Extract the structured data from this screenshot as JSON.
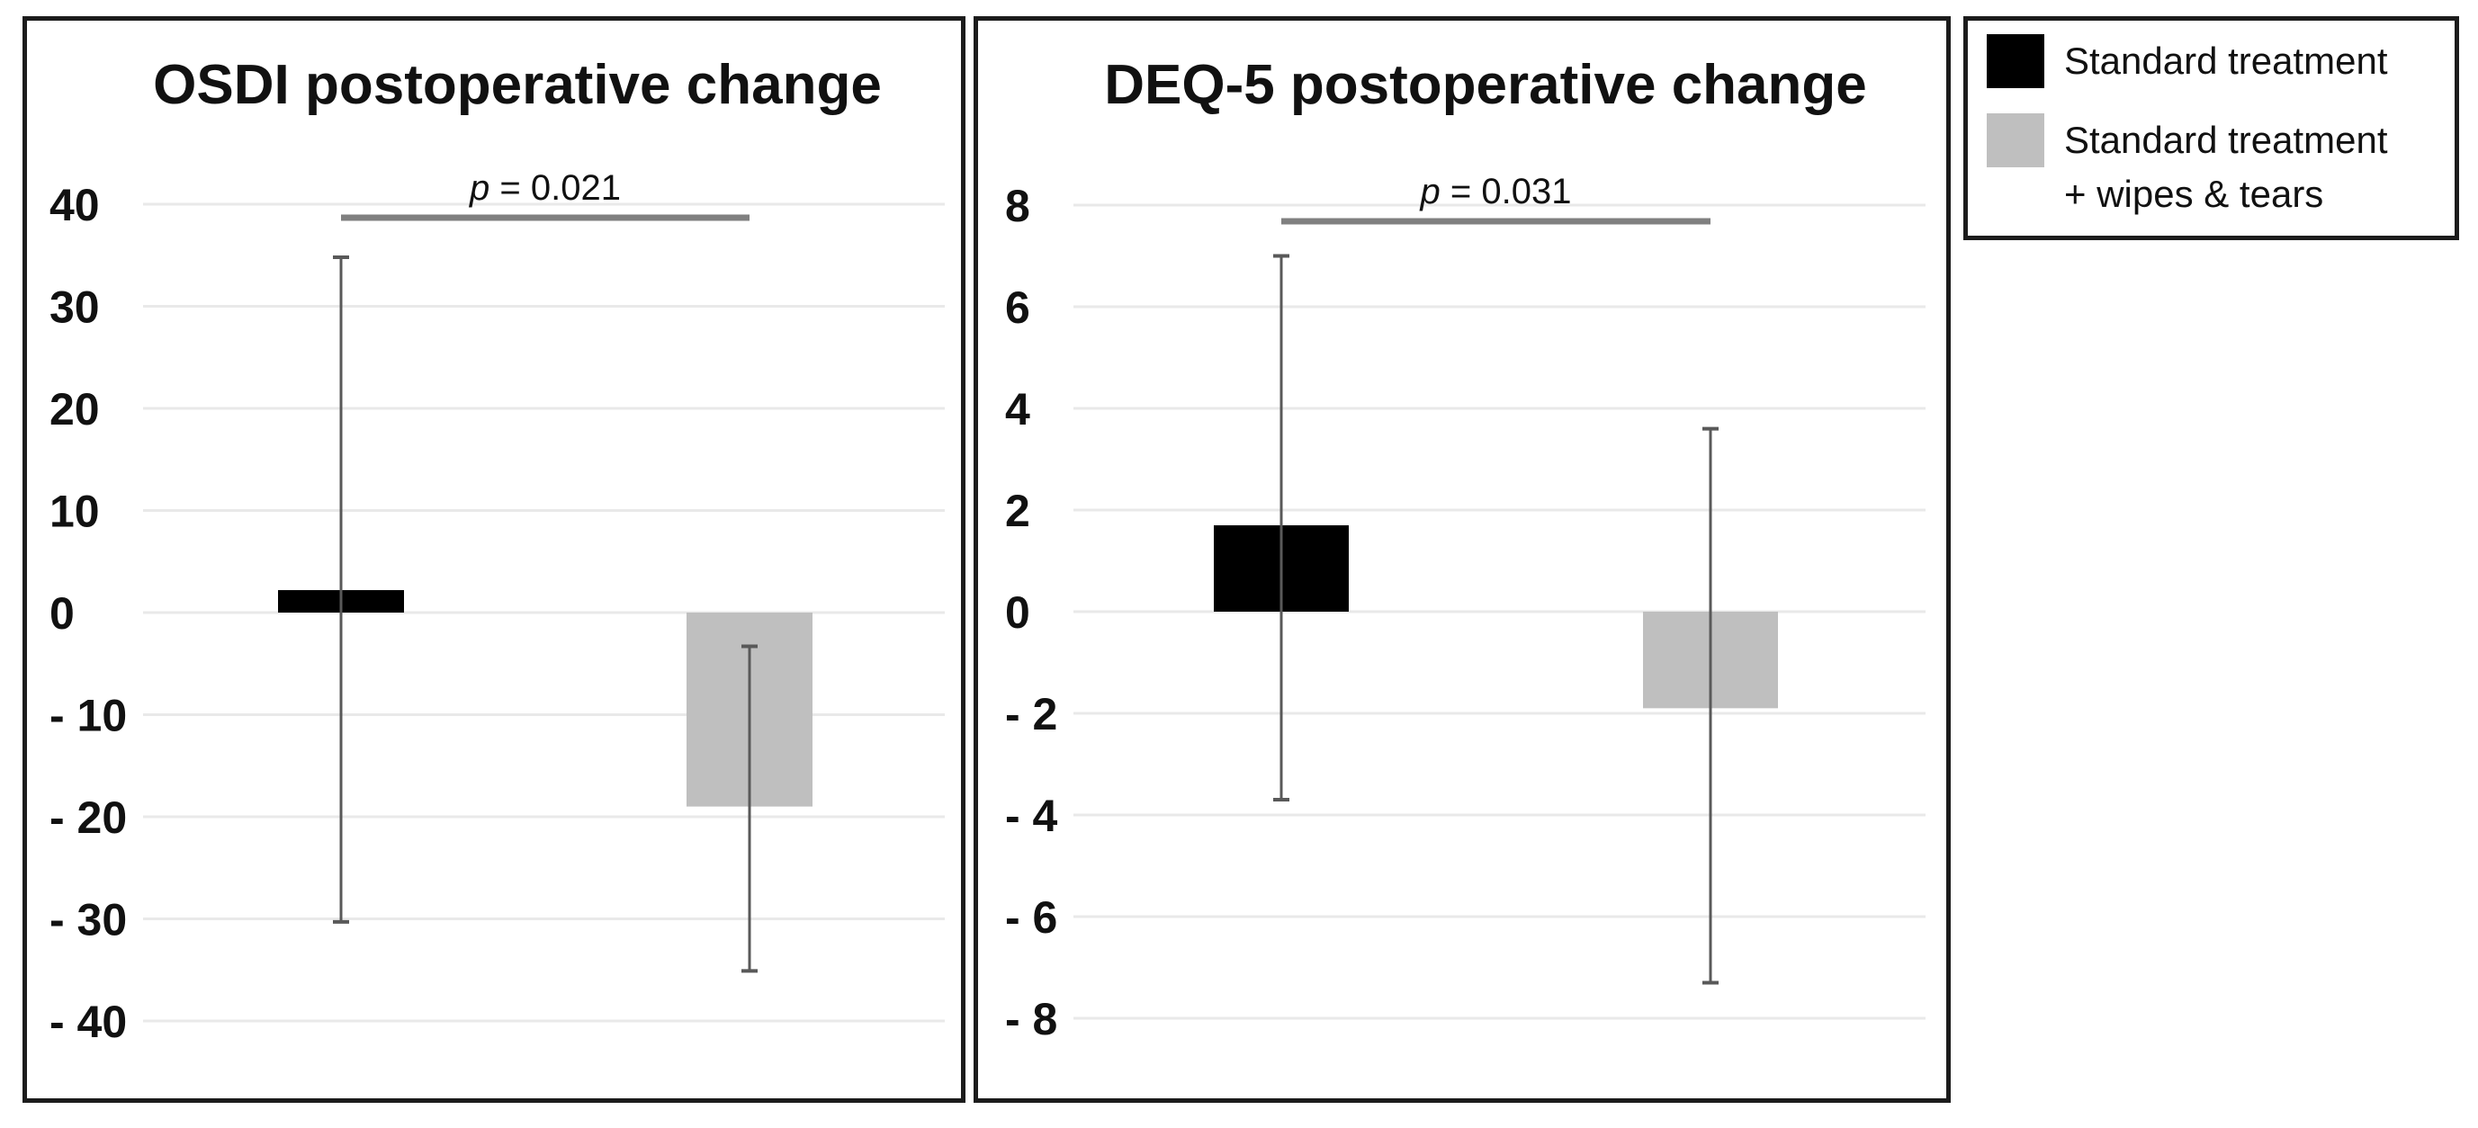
{
  "legend": {
    "items": [
      {
        "label": "Standard treatment",
        "color": "#000000"
      },
      {
        "label": "Standard treatment\n+ wipes & tears",
        "color": "#bfbfbf"
      }
    ]
  },
  "colors": {
    "bar_black": "#000000",
    "bar_gray": "#bfbfbf",
    "error_bar": "#595959",
    "significance_line": "#808080",
    "gridline": "#e9e9e9",
    "text": "#111111"
  },
  "chart_data": [
    {
      "type": "bar",
      "title": "OSDI postoperative change",
      "categories": [
        "Standard treatment",
        "Standard treatment + wipes & tears"
      ],
      "values": [
        2.2,
        -19
      ],
      "error_high": [
        34.8,
        -3.3
      ],
      "error_low": [
        -30.3,
        -35.1
      ],
      "bar_colors": [
        "#000000",
        "#bfbfbf"
      ],
      "ylim": [
        -40,
        40
      ],
      "yticks": [
        40,
        30,
        20,
        10,
        0,
        -10,
        -20,
        -30,
        -40
      ],
      "ytick_labels": [
        "40",
        "30",
        "20",
        "10",
        "0",
        "- 10",
        "- 20",
        "- 30",
        "- 40"
      ],
      "grid": true,
      "annotation": {
        "p_label": "p = 0.021"
      },
      "legend_position": "outside-top-right"
    },
    {
      "type": "bar",
      "title": "DEQ-5 postoperative change",
      "categories": [
        "Standard treatment",
        "Standard treatment + wipes & tears"
      ],
      "values": [
        1.7,
        -1.9
      ],
      "error_high": [
        7.0,
        3.6
      ],
      "error_low": [
        -3.7,
        -7.3
      ],
      "bar_colors": [
        "#000000",
        "#bfbfbf"
      ],
      "ylim": [
        -8,
        8
      ],
      "yticks": [
        8,
        6,
        4,
        2,
        0,
        -2,
        -4,
        -6,
        -8
      ],
      "ytick_labels": [
        "8",
        "6",
        "4",
        "2",
        "0",
        "- 2",
        "- 4",
        "- 6",
        "- 8"
      ],
      "grid": true,
      "annotation": {
        "p_label": "p = 0.031"
      },
      "legend_position": "outside-top-right"
    }
  ]
}
